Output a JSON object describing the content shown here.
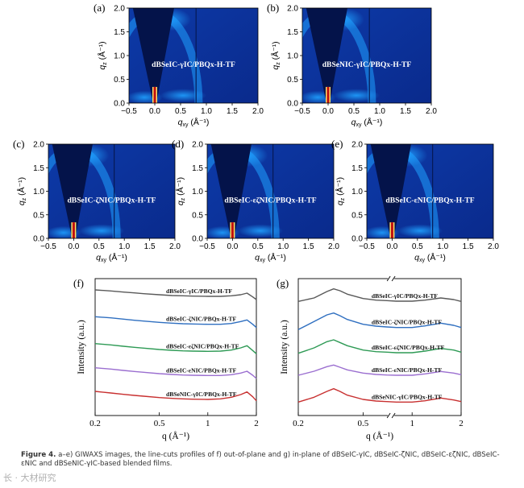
{
  "figure": {
    "caption_label": "Figure 4.",
    "caption_text": "a–e) GIWAXS images, the line-cuts profiles of f) out-of-plane and g) in-plane of dBSeIC-γIC, dBSeIC-ζNIC, dBSeIC-εζNIC, dBSeIC-εNIC and dBSeNIC-γIC-based blended films.",
    "watermark": "长 · 大材研究"
  },
  "giwaxs": [
    {
      "panel": "(a)",
      "label": "dBSeIC-γIC/PBQx-H-TF"
    },
    {
      "panel": "(b)",
      "label": "dBSeNIC-γIC/PBQx-H-TF"
    },
    {
      "panel": "(c)",
      "label": "dBSeIC-ζNIC/PBQx-H-TF"
    },
    {
      "panel": "(d)",
      "label": "dBSeIC-εζNIC/PBQx-H-TF"
    },
    {
      "panel": "(e)",
      "label": "dBSeIC-εNIC/PBQx-H-TF"
    }
  ],
  "giwaxs_axes": {
    "xlabel": "q",
    "xlabel_sub": "xy",
    "xlabel_unit": " (Å⁻¹)",
    "ylabel": "q",
    "ylabel_sub": "z",
    "ylabel_unit": " (Å⁻¹)",
    "xticks": [
      "−0.5",
      "0.0",
      "0.5",
      "1.0",
      "1.5",
      "2.0"
    ],
    "yticks": [
      "0.0",
      "0.5",
      "1.0",
      "1.5",
      "2.0"
    ]
  },
  "colors": {
    "map_bg": "#0a2a8c",
    "map_dark": "#04134a",
    "map_bright": "#1fa0ff",
    "series": [
      "#595959",
      "#2f6fc0",
      "#2e9a55",
      "#9b6fd0",
      "#c83030"
    ]
  },
  "chart_data": [
    {
      "panel": "(f)",
      "type": "line",
      "xscale": "log",
      "xlabel": "q (Å⁻¹)",
      "ylabel": "Intensity (a.u.)",
      "xticks": [
        "0.2",
        "0.5",
        "1",
        "2"
      ],
      "xlim": [
        0.2,
        2
      ],
      "series": [
        {
          "name": "dBSeIC-γIC/PBQx-H-TF",
          "x": [
            0.2,
            0.25,
            0.3,
            0.35,
            0.4,
            0.5,
            0.6,
            0.7,
            0.8,
            1.0,
            1.2,
            1.4,
            1.6,
            1.75,
            1.9,
            2.0
          ],
          "y": [
            4.98,
            4.94,
            4.9,
            4.87,
            4.84,
            4.8,
            4.77,
            4.76,
            4.75,
            4.74,
            4.74,
            4.76,
            4.8,
            4.86,
            4.72,
            4.62
          ]
        },
        {
          "name": "dBSeIC-ζNIC/PBQx-H-TF",
          "x": [
            0.2,
            0.25,
            0.3,
            0.35,
            0.4,
            0.5,
            0.6,
            0.7,
            0.8,
            1.0,
            1.2,
            1.4,
            1.6,
            1.75,
            1.9,
            2.0
          ],
          "y": [
            3.98,
            3.94,
            3.89,
            3.85,
            3.82,
            3.77,
            3.74,
            3.72,
            3.71,
            3.7,
            3.7,
            3.73,
            3.8,
            3.86,
            3.7,
            3.58
          ]
        },
        {
          "name": "dBSeIC-εζNIC/PBQx-H-TF",
          "x": [
            0.2,
            0.25,
            0.3,
            0.35,
            0.4,
            0.5,
            0.6,
            0.7,
            0.8,
            1.0,
            1.2,
            1.4,
            1.6,
            1.75,
            1.9,
            2.0
          ],
          "y": [
            2.98,
            2.93,
            2.88,
            2.84,
            2.81,
            2.76,
            2.73,
            2.71,
            2.7,
            2.69,
            2.7,
            2.74,
            2.82,
            2.9,
            2.72,
            2.6
          ]
        },
        {
          "name": "dBSeIC-εNIC/PBQx-H-TF",
          "x": [
            0.2,
            0.25,
            0.3,
            0.35,
            0.4,
            0.5,
            0.6,
            0.7,
            0.8,
            1.0,
            1.2,
            1.4,
            1.6,
            1.75,
            1.9,
            2.0
          ],
          "y": [
            2.08,
            2.03,
            1.98,
            1.94,
            1.91,
            1.86,
            1.83,
            1.81,
            1.8,
            1.79,
            1.79,
            1.82,
            1.88,
            1.95,
            1.8,
            1.68
          ]
        },
        {
          "name": "dBSeNIC-γIC/PBQx-H-TF",
          "x": [
            0.2,
            0.25,
            0.3,
            0.35,
            0.4,
            0.5,
            0.6,
            0.7,
            0.8,
            1.0,
            1.2,
            1.4,
            1.6,
            1.75,
            1.9,
            2.0
          ],
          "y": [
            1.2,
            1.14,
            1.09,
            1.05,
            1.02,
            0.97,
            0.94,
            0.92,
            0.91,
            0.9,
            0.92,
            0.98,
            1.08,
            1.18,
            1.0,
            0.85
          ]
        }
      ]
    },
    {
      "panel": "(g)",
      "type": "line",
      "xscale": "log",
      "axis_break": true,
      "xlabel": "q (Å⁻¹)",
      "ylabel": "Intensity (a.u.)",
      "xticks": [
        "0.2",
        "0.5",
        "1",
        "2"
      ],
      "xlim": [
        0.2,
        2
      ],
      "series": [
        {
          "name": "dBSeIC-γIC/PBQx-H-TF",
          "x": [
            0.2,
            0.25,
            0.3,
            0.33,
            0.36,
            0.4,
            0.5,
            0.6,
            0.7,
            0.8,
            1.0,
            1.2,
            1.5,
            1.8,
            2.0
          ],
          "y": [
            4.55,
            4.68,
            4.92,
            5.02,
            4.95,
            4.82,
            4.66,
            4.6,
            4.58,
            4.56,
            4.56,
            4.6,
            4.68,
            4.62,
            4.55
          ]
        },
        {
          "name": "dBSeIC-ζNIC/PBQx-H-TF",
          "x": [
            0.2,
            0.25,
            0.3,
            0.33,
            0.36,
            0.4,
            0.5,
            0.6,
            0.7,
            0.8,
            1.0,
            1.2,
            1.5,
            1.8,
            2.0
          ],
          "y": [
            3.5,
            3.8,
            4.05,
            4.12,
            4.02,
            3.88,
            3.7,
            3.63,
            3.6,
            3.58,
            3.58,
            3.64,
            3.74,
            3.66,
            3.58
          ]
        },
        {
          "name": "dBSeIC-εζNIC/PBQx-H-TF",
          "x": [
            0.2,
            0.25,
            0.3,
            0.33,
            0.36,
            0.4,
            0.5,
            0.6,
            0.7,
            0.8,
            1.0,
            1.2,
            1.5,
            1.8,
            2.0
          ],
          "y": [
            2.62,
            2.82,
            3.05,
            3.12,
            3.02,
            2.9,
            2.74,
            2.68,
            2.66,
            2.64,
            2.64,
            2.7,
            2.8,
            2.74,
            2.66
          ]
        },
        {
          "name": "dBSeIC-εNIC/PBQx-H-TF",
          "x": [
            0.2,
            0.25,
            0.3,
            0.33,
            0.36,
            0.4,
            0.5,
            0.6,
            0.7,
            0.8,
            1.0,
            1.2,
            1.5,
            1.8,
            2.0
          ],
          "y": [
            1.8,
            1.95,
            2.12,
            2.18,
            2.1,
            2.0,
            1.88,
            1.83,
            1.81,
            1.8,
            1.8,
            1.85,
            1.94,
            1.88,
            1.82
          ]
        },
        {
          "name": "dBSeNIC-γIC/PBQx-H-TF",
          "x": [
            0.2,
            0.25,
            0.3,
            0.33,
            0.36,
            0.4,
            0.5,
            0.6,
            0.7,
            0.8,
            1.0,
            1.2,
            1.5,
            1.8,
            2.0
          ],
          "y": [
            0.8,
            0.98,
            1.2,
            1.3,
            1.2,
            1.06,
            0.9,
            0.84,
            0.82,
            0.8,
            0.8,
            0.85,
            0.95,
            0.88,
            0.82
          ]
        }
      ]
    }
  ]
}
